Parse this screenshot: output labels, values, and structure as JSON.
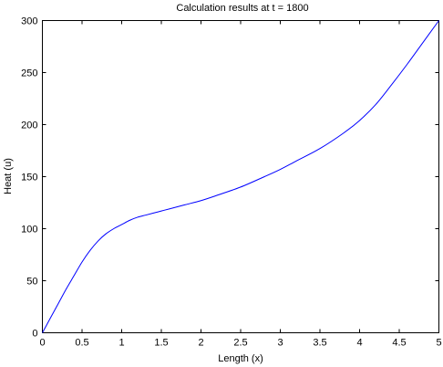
{
  "colors": {
    "background": "#ffffff",
    "axes": "#000000",
    "line": "#0000ff"
  },
  "chart_data": {
    "type": "line",
    "title": "Calculation results at t = 1800",
    "xlabel": "Length (x)",
    "ylabel": "Heat (u)",
    "xlim": [
      0,
      5
    ],
    "ylim": [
      0,
      300
    ],
    "xticks": [
      "0",
      "0.5",
      "1",
      "1.5",
      "2",
      "2.5",
      "3",
      "3.5",
      "4",
      "4.5",
      "5"
    ],
    "yticks": [
      "0",
      "50",
      "100",
      "150",
      "200",
      "250",
      "300"
    ],
    "grid": false,
    "legend": "none",
    "series": [
      {
        "color": "#0000ff",
        "x": [
          0,
          0.1,
          0.2,
          0.3,
          0.4,
          0.5,
          0.6,
          0.7,
          0.8,
          0.9,
          1.0,
          1.1,
          1.2,
          1.3,
          1.4,
          1.5,
          1.6,
          1.8,
          2.0,
          2.2,
          2.5,
          2.8,
          3.0,
          3.2,
          3.5,
          3.8,
          4.0,
          4.2,
          4.4,
          4.6,
          4.8,
          5.0
        ],
        "y": [
          0,
          14,
          28,
          42,
          55,
          68,
          79,
          88,
          95,
          100,
          104,
          108,
          111,
          113,
          115,
          117,
          119,
          123,
          127,
          132,
          140,
          150,
          157,
          165,
          177,
          192,
          204,
          219,
          238,
          258,
          279,
          300
        ]
      }
    ]
  }
}
